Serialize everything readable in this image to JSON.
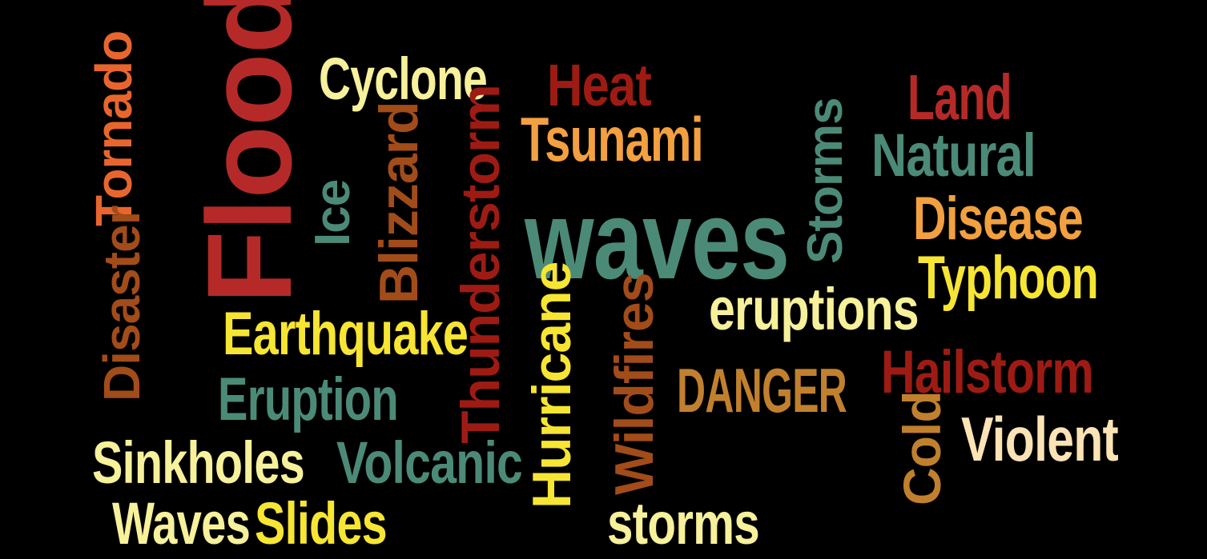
{
  "words": [
    {
      "key": "floods",
      "text": "Floods",
      "color": "#b52a28"
    },
    {
      "key": "waves_big",
      "text": "waves",
      "color": "#4c8a78"
    },
    {
      "key": "cyclone",
      "text": "Cyclone",
      "color": "#f6f19a"
    },
    {
      "key": "heat",
      "text": "Heat",
      "color": "#9e1b14"
    },
    {
      "key": "land",
      "text": "Land",
      "color": "#b52a28"
    },
    {
      "key": "tsunami",
      "text": "Tsunami",
      "color": "#f2a040"
    },
    {
      "key": "natural",
      "text": "Natural",
      "color": "#4c8a78"
    },
    {
      "key": "storms_v",
      "text": "Storms",
      "color": "#4c8a78"
    },
    {
      "key": "disease",
      "text": "Disease",
      "color": "#f2a040"
    },
    {
      "key": "typhoon",
      "text": "Typhoon",
      "color": "#f6e533"
    },
    {
      "key": "tornado",
      "text": "Tornado",
      "color": "#e8662e"
    },
    {
      "key": "disaster",
      "text": "Disaster",
      "color": "#a24c1a"
    },
    {
      "key": "ice",
      "text": "Ice",
      "color": "#4c8a78"
    },
    {
      "key": "blizzard",
      "text": "Blizzard",
      "color": "#a24c1a"
    },
    {
      "key": "thunderstorm",
      "text": "Thunderstorm",
      "color": "#9e1b14"
    },
    {
      "key": "earthquake",
      "text": "Earthquake",
      "color": "#f6e533"
    },
    {
      "key": "eruption",
      "text": "Eruption",
      "color": "#4c8a78"
    },
    {
      "key": "eruptions",
      "text": "eruptions",
      "color": "#f6f19a"
    },
    {
      "key": "hurricane",
      "text": "Hurricane",
      "color": "#f6e533"
    },
    {
      "key": "wildfires",
      "text": "Wildfires",
      "color": "#a24c1a"
    },
    {
      "key": "danger",
      "text": "DANGER",
      "color": "#c1802e"
    },
    {
      "key": "hailstorm",
      "text": "Hailstorm",
      "color": "#9e1b14"
    },
    {
      "key": "cold",
      "text": "Cold",
      "color": "#c1802e"
    },
    {
      "key": "violent",
      "text": "Violent",
      "color": "#fbe3b5"
    },
    {
      "key": "sinkholes",
      "text": "Sinkholes",
      "color": "#f6f19a"
    },
    {
      "key": "volcanic",
      "text": "Volcanic",
      "color": "#4c8a78"
    },
    {
      "key": "waves_small",
      "text": "Waves",
      "color": "#f6f19a"
    },
    {
      "key": "slides",
      "text": "Slides",
      "color": "#f6e533"
    },
    {
      "key": "storms_lower",
      "text": "storms",
      "color": "#f6f19a"
    }
  ]
}
